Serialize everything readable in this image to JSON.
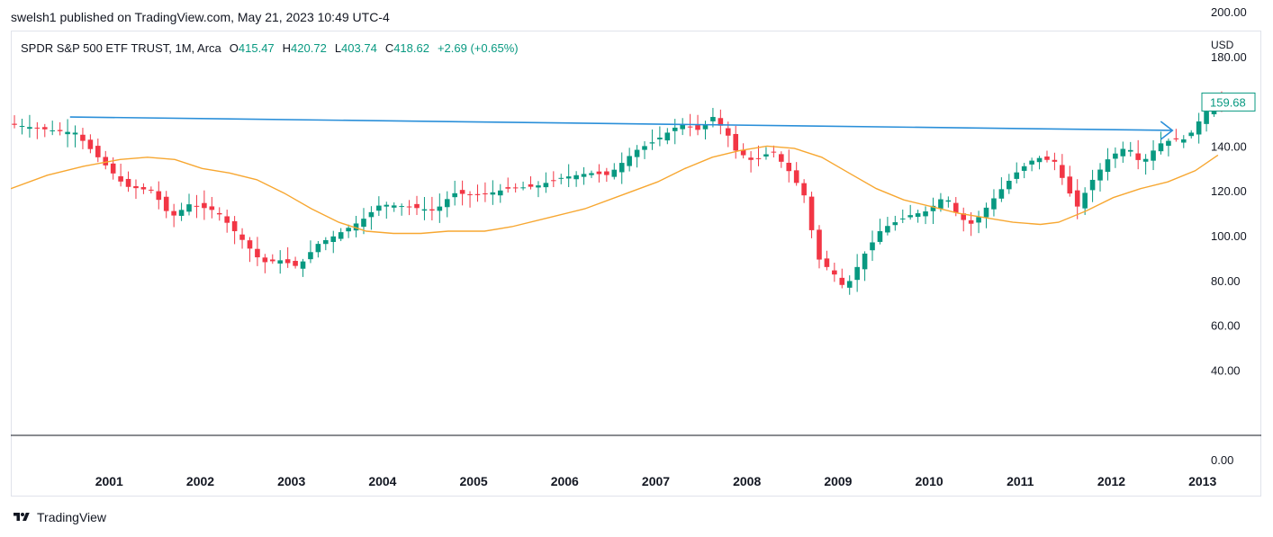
{
  "header": {
    "published_line": "swelsh1 published on TradingView.com, May 21, 2023 10:49 UTC-4"
  },
  "legend": {
    "symbol": "SPDR S&P 500 ETF TRUST, 1M, Arca",
    "open_label": "O",
    "open": "415.47",
    "high_label": "H",
    "high": "420.72",
    "low_label": "L",
    "low": "403.74",
    "close_label": "C",
    "close": "418.62",
    "change": "+2.69 (+0.65%)"
  },
  "price_axis": {
    "currency": "USD",
    "last_price_label": "159.68"
  },
  "footer": {
    "brand": "TradingView"
  },
  "colors": {
    "up": "#089981",
    "down": "#f23645",
    "ma": "#f7a731",
    "trendline": "#2a8fd9",
    "axis_text": "#131722",
    "grid_border": "#e0e3eb"
  },
  "chart_data": {
    "type": "candlestick",
    "interval": "1M",
    "ylim": [
      0,
      200
    ],
    "y_ticks": [
      "0.00",
      "40.00",
      "60.00",
      "80.00",
      "100.00",
      "120.00",
      "140.00",
      "180.00",
      "200.00"
    ],
    "x_ticks": [
      "2001",
      "2002",
      "2003",
      "2004",
      "2005",
      "2006",
      "2007",
      "2008",
      "2009",
      "2010",
      "2011",
      "2012",
      "2013"
    ],
    "last_price": 159.68,
    "moving_average": [
      [
        2000.0,
        121
      ],
      [
        2000.4,
        127
      ],
      [
        2000.8,
        131
      ],
      [
        2001.2,
        134
      ],
      [
        2001.5,
        135
      ],
      [
        2001.8,
        134
      ],
      [
        2002.1,
        130
      ],
      [
        2002.4,
        128
      ],
      [
        2002.7,
        125
      ],
      [
        2003.0,
        119
      ],
      [
        2003.3,
        112
      ],
      [
        2003.6,
        106
      ],
      [
        2003.9,
        102
      ],
      [
        2004.2,
        101
      ],
      [
        2004.5,
        101
      ],
      [
        2004.8,
        102
      ],
      [
        2005.2,
        102
      ],
      [
        2005.5,
        104
      ],
      [
        2005.9,
        108
      ],
      [
        2006.3,
        112
      ],
      [
        2006.7,
        118
      ],
      [
        2007.1,
        124
      ],
      [
        2007.4,
        130
      ],
      [
        2007.7,
        135
      ],
      [
        2008.0,
        138
      ],
      [
        2008.3,
        140
      ],
      [
        2008.6,
        139
      ],
      [
        2008.9,
        135
      ],
      [
        2009.2,
        128
      ],
      [
        2009.5,
        121
      ],
      [
        2009.8,
        116
      ],
      [
        2010.1,
        113
      ],
      [
        2010.4,
        110
      ],
      [
        2010.7,
        108
      ],
      [
        2011.0,
        106
      ],
      [
        2011.3,
        105
      ],
      [
        2011.5,
        106
      ],
      [
        2011.8,
        111
      ],
      [
        2012.1,
        117
      ],
      [
        2012.4,
        121
      ],
      [
        2012.7,
        124
      ],
      [
        2013.0,
        129
      ],
      [
        2013.25,
        136
      ]
    ],
    "trendline": {
      "from": [
        2000.65,
        153
      ],
      "to": [
        2012.75,
        147
      ],
      "arrow": true
    }
  }
}
